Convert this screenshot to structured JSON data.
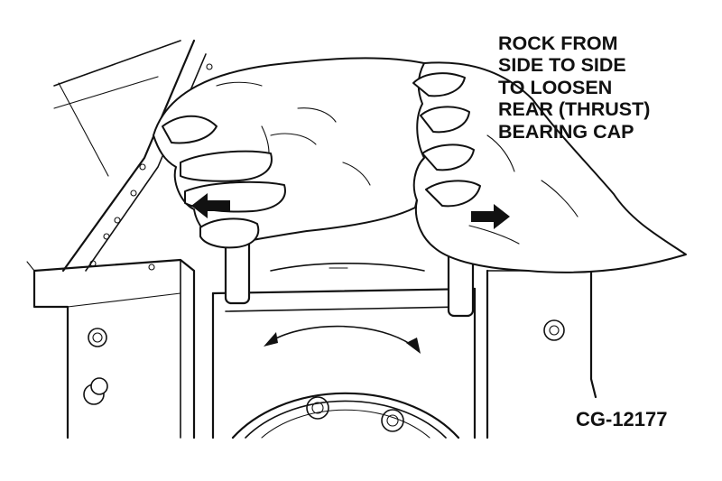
{
  "callout": {
    "lines": [
      "ROCK FROM",
      "SIDE TO SIDE",
      "TO LOOSEN",
      "REAR (THRUST)",
      "BEARING CAP"
    ]
  },
  "figure_id": "CG-12177",
  "icons": {
    "left_arrow": "arrow-left-icon",
    "right_arrow": "arrow-right-icon",
    "rotation_arrow": "curved-double-arrow-icon"
  }
}
